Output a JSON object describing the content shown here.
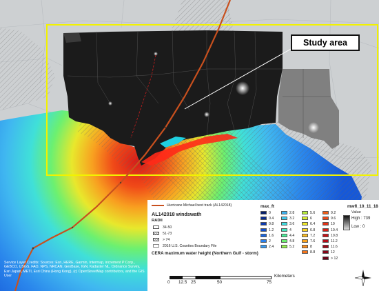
{
  "callout": {
    "label": "Study area"
  },
  "legend": {
    "best_track": "Hurricane Michael best track (AL142018)",
    "windswath_title": "AL142018 windswath",
    "radii_title": "RADII",
    "radii_items": [
      "34-50",
      "51-73",
      "> 74"
    ],
    "counties": "2016 U.S. Counties Boundary File",
    "cera_title": "CERA maximum water height (Northern Gulf - storm)",
    "maxft_title": "max_ft",
    "maxft_columns": [
      [
        {
          "label": "0",
          "color": "#07206b"
        },
        {
          "label": "0.4",
          "color": "#0a2d8f"
        },
        {
          "label": "0.8",
          "color": "#0d3cb0"
        },
        {
          "label": "1.2",
          "color": "#104fcf"
        },
        {
          "label": "1.6",
          "color": "#1a66e0"
        },
        {
          "label": "2",
          "color": "#2a80ec"
        },
        {
          "label": "2.4",
          "color": "#3a9af0"
        }
      ],
      [
        {
          "label": "2.8",
          "color": "#3fb4f2"
        },
        {
          "label": "3.2",
          "color": "#40c9ee"
        },
        {
          "label": "3.6",
          "color": "#40dde0"
        },
        {
          "label": "4",
          "color": "#40e8c0"
        },
        {
          "label": "4.4",
          "color": "#4aee98"
        },
        {
          "label": "4.8",
          "color": "#6cf070"
        },
        {
          "label": "5.2",
          "color": "#94f050"
        }
      ],
      [
        {
          "label": "5.6",
          "color": "#b8ee3c"
        },
        {
          "label": "6",
          "color": "#d8ec30"
        },
        {
          "label": "6.4",
          "color": "#f0e82a"
        },
        {
          "label": "6.8",
          "color": "#f8d424"
        },
        {
          "label": "7.2",
          "color": "#fcbc20"
        },
        {
          "label": "7.6",
          "color": "#fca41e"
        },
        {
          "label": "8",
          "color": "#fa8c1c"
        },
        {
          "label": "8.8",
          "color": "#f6741a"
        }
      ],
      [
        {
          "label": "9.2",
          "color": "#f25e18"
        },
        {
          "label": "9.6",
          "color": "#ec4818"
        },
        {
          "label": "10",
          "color": "#e43418"
        },
        {
          "label": "10.4",
          "color": "#d82218"
        },
        {
          "label": "10.8",
          "color": "#c81418"
        },
        {
          "label": "11.2",
          "color": "#b40c18"
        },
        {
          "label": "11.6",
          "color": "#9c0818"
        },
        {
          "label": "12",
          "color": "#840618"
        },
        {
          "label": "> 12",
          "color": "#6c0418"
        }
      ]
    ],
    "raster_title": "mwfl_10_11_18",
    "raster_value": "Value",
    "raster_high": "High : 739",
    "raster_low": "Low : 0"
  },
  "attribution": "Service Layer Credits: Sources: Esri, HERE, Garmin, Intermap, increment P Corp., GEBCO, USGS, FAO, NPS, NRCAN, GeoBase, IGN, Kadaster NL, Ordnance Survey, Esri Japan, METI, Esri China (Hong Kong), (c) OpenStreetMap contributors, and the GIS User",
  "scale_bar": {
    "ticks": [
      "0",
      "12.5",
      "25",
      "50",
      "75"
    ],
    "unit": "Kilometers"
  },
  "colors": {
    "study_area_box": "#f2f200",
    "track": "#c8501e",
    "land": "#cdd0d2",
    "ocean_deep": "#1e6ee6",
    "ocean_mid": "#40c8f0"
  }
}
